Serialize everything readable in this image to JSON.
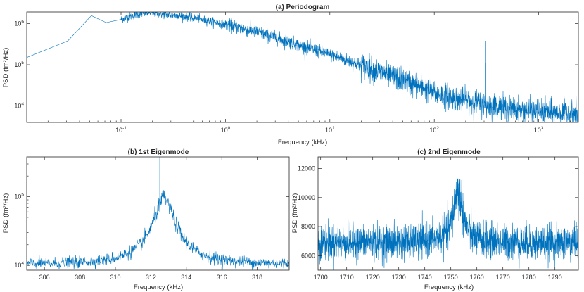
{
  "chart_data": [
    {
      "type": "line",
      "title": "(a) Periodogram",
      "xlabel": "Frequency (kHz)",
      "ylabel": "PSD (fm²/Hz)",
      "xscale": "log",
      "yscale": "log",
      "xlim": [
        0.0125,
        2400
      ],
      "ylim": [
        4000,
        1900000
      ],
      "xticks": [
        {
          "v": 0.1,
          "b": "10",
          "e": "-1"
        },
        {
          "v": 1,
          "b": "10",
          "e": "0"
        },
        {
          "v": 10,
          "b": "10",
          "e": "1"
        },
        {
          "v": 100,
          "b": "10",
          "e": "2"
        },
        {
          "v": 1000,
          "b": "10",
          "e": "3"
        }
      ],
      "yticks": [
        {
          "v": 10000,
          "b": "10",
          "e": "4"
        },
        {
          "v": 100000,
          "b": "10",
          "e": "5"
        },
        {
          "v": 1000000,
          "b": "10",
          "e": "6"
        }
      ],
      "series": [
        {
          "name": "PSD",
          "color": "#0072BD",
          "x": [
            0.0125,
            0.031,
            0.052,
            0.072,
            0.1,
            0.14,
            0.19,
            0.26,
            0.4,
            0.7,
            1.0,
            2.0,
            5.0,
            10,
            20,
            50,
            100,
            200,
            500,
            1000,
            2400
          ],
          "y": [
            150000,
            380000,
            1550000,
            1050000,
            1250000,
            1650000,
            1850000,
            1650000,
            1500000,
            1150000,
            950000,
            620000,
            300000,
            175000,
            98000,
            42000,
            21000,
            13500,
            8800,
            7300,
            6400
          ],
          "peaks": [
            {
              "x": 100,
              "y": 40000
            },
            {
              "x": 312.5,
              "y": 380000
            },
            {
              "x": 313,
              "y": 110000
            },
            {
              "x": 1753,
              "y": 16000
            }
          ]
        }
      ]
    },
    {
      "type": "line",
      "title": "(b) 1st Eigenmode",
      "xlabel": "Frequency (kHz)",
      "ylabel": "PSD (fm²/Hz)",
      "xscale": "linear",
      "yscale": "log",
      "xlim": [
        305,
        319.8
      ],
      "ylim": [
        8500,
        380000
      ],
      "xticks": [
        306,
        308,
        310,
        312,
        314,
        316,
        318
      ],
      "yticks": [
        {
          "v": 10000,
          "b": "10",
          "e": "4"
        },
        {
          "v": 100000,
          "b": "10",
          "e": "5"
        }
      ],
      "series": [
        {
          "name": "PSD",
          "color": "#0072BD",
          "baseline": 10200,
          "resonance": {
            "center": 312.75,
            "width": 0.5,
            "peak": 95000
          },
          "spike": {
            "x": 312.5,
            "y": 380000
          }
        }
      ]
    },
    {
      "type": "line",
      "title": "(c) 2nd Eigenmode",
      "xlabel": "Frequency (kHz)",
      "ylabel": "PSD (fm²/Hz)",
      "xscale": "linear",
      "yscale": "linear",
      "xlim": [
        1699,
        1799
      ],
      "ylim": [
        5000,
        12800
      ],
      "xticks": [
        1700,
        1710,
        1720,
        1730,
        1740,
        1750,
        1760,
        1770,
        1780,
        1790
      ],
      "yticks": [
        6000,
        8000,
        10000,
        12000
      ],
      "series": [
        {
          "name": "PSD",
          "color": "#0072BD",
          "baseline": 6900,
          "resonance": {
            "center": 1752.8,
            "width": 2.2,
            "peak": 10500
          }
        }
      ]
    }
  ]
}
